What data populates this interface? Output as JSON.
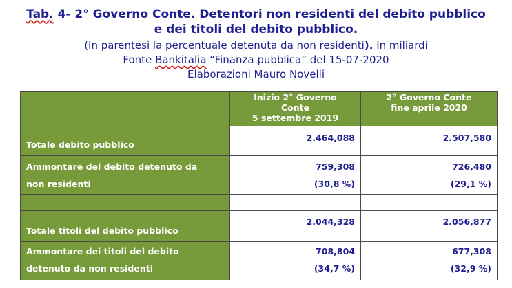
{
  "header": {
    "title_prefix": "Tab.",
    "title_line1_rest": " 4- 2° Governo Conte. Detentori non residenti del debito pubblico",
    "title_line2": "e dei titoli del debito pubblico.",
    "subtitle_paren_open": "(In parentesi la percentuale detenuta da non residenti",
    "subtitle_paren_close": ").",
    "subtitle_rest": " In miliardi",
    "source_prefix": "Fonte ",
    "source_underlined": "Bankitalia",
    "source_rest": " “Finanza pubblica” del 15-07-2020",
    "author": "Elaborazioni Mauro Novelli"
  },
  "table": {
    "col1_header_lines": [
      "Inizio 2° Governo",
      "Conte",
      "5 settembre 2019"
    ],
    "col2_header_lines": [
      "2° Governo Conte",
      "fine  aprile 2020"
    ],
    "rows": [
      {
        "label_lines": [
          "Totale debito pubblico"
        ],
        "v1": [
          "2.464,088"
        ],
        "v2": [
          "2.507,580"
        ]
      },
      {
        "label_lines": [
          "Ammontare del debito detenuto da",
          "non residenti"
        ],
        "v1": [
          "759,308",
          "(30,8 %)"
        ],
        "v2": [
          "726,480",
          "(29,1 %)"
        ]
      },
      {
        "label_lines": [
          ""
        ],
        "v1": [
          ""
        ],
        "v2": [
          ""
        ]
      },
      {
        "label_lines": [
          "Totale titoli del debito pubblico"
        ],
        "v1": [
          "2.044,328"
        ],
        "v2": [
          "2.056,877"
        ]
      },
      {
        "label_lines": [
          "Ammontare dei titoli del debito",
          "detenuto da non residenti"
        ],
        "v1": [
          "708,804",
          "(34,7 %)"
        ],
        "v2": [
          "677,308",
          "(32,9 %)"
        ]
      }
    ]
  }
}
